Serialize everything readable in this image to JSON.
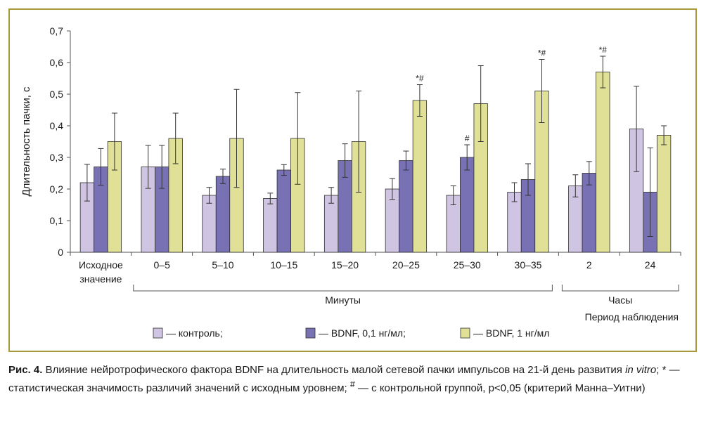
{
  "chart_data": {
    "type": "bar",
    "ylabel": "Длительность пачки, с",
    "ylim": [
      0,
      0.7
    ],
    "yticks": [
      "0",
      "0,1",
      "0,2",
      "0,3",
      "0,4",
      "0,5",
      "0,6",
      "0,7"
    ],
    "categories": [
      "Исходное значение",
      "0–5",
      "5–10",
      "10–15",
      "15–20",
      "20–25",
      "25–30",
      "30–35",
      "2",
      "24"
    ],
    "groups": [
      {
        "label": "Минуты"
      },
      {
        "label": "Часы"
      }
    ],
    "axis_title": "Период наблюдения",
    "series": [
      {
        "name": "— контроль;",
        "color": "#cfc5e2",
        "values": [
          0.22,
          0.27,
          0.18,
          0.17,
          0.18,
          0.2,
          0.18,
          0.19,
          0.21,
          0.39
        ],
        "errors": [
          0.058,
          0.068,
          0.025,
          0.017,
          0.025,
          0.033,
          0.03,
          0.03,
          0.035,
          0.135
        ]
      },
      {
        "name": "— BDNF, 0,1 нг/мл;",
        "color": "#7871b4",
        "values": [
          0.27,
          0.27,
          0.24,
          0.26,
          0.29,
          0.29,
          0.3,
          0.23,
          0.25,
          0.19
        ],
        "errors": [
          0.058,
          0.068,
          0.023,
          0.017,
          0.053,
          0.03,
          0.04,
          0.05,
          0.037,
          0.14
        ]
      },
      {
        "name": "— BDNF, 1 нг/мл",
        "color": "#e0e196",
        "values": [
          0.35,
          0.36,
          0.36,
          0.36,
          0.35,
          0.48,
          0.47,
          0.51,
          0.57,
          0.37
        ],
        "errors": [
          0.09,
          0.08,
          0.155,
          0.145,
          0.16,
          0.05,
          0.12,
          0.1,
          0.05,
          0.03
        ]
      }
    ],
    "annotations": [
      {
        "series": 2,
        "category": 5,
        "text": "*#"
      },
      {
        "series": 1,
        "category": 6,
        "text": "#"
      },
      {
        "series": 2,
        "category": 7,
        "text": "*#"
      },
      {
        "series": 2,
        "category": 8,
        "text": "*#"
      }
    ]
  },
  "caption": {
    "label": "Рис. 4.",
    "text1": " Влияние нейротрофического фактора BDNF на длительность малой сетевой пачки импульсов на 21-й день развития ",
    "italic": "in vitro",
    "text2": "; * — статистическая значимость различий значений с исходным уровнем; ",
    "sup": "#",
    "text3": " — с контрольной группой, p<0,05 (критерий Манна–Уитни)"
  }
}
